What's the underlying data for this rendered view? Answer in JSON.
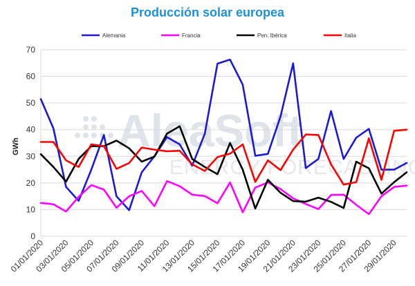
{
  "chart_data": {
    "type": "line",
    "title": "Producción solar europea",
    "xlabel": "",
    "ylabel": "GWh",
    "ylim": [
      0,
      70
    ],
    "yticks": [
      0,
      10,
      20,
      30,
      40,
      50,
      60,
      70
    ],
    "grid": true,
    "legend_position": "top",
    "watermark": [
      "AleaSoft",
      "ENERGY FORECASTING"
    ],
    "x": [
      "01/01/2020",
      "02/01/2020",
      "03/01/2020",
      "04/01/2020",
      "05/01/2020",
      "06/01/2020",
      "07/01/2020",
      "08/01/2020",
      "09/01/2020",
      "10/01/2020",
      "11/01/2020",
      "12/01/2020",
      "13/01/2020",
      "14/01/2020",
      "15/01/2020",
      "16/01/2020",
      "17/01/2020",
      "18/01/2020",
      "19/01/2020",
      "20/01/2020",
      "21/01/2020",
      "22/01/2020",
      "23/01/2020",
      "24/01/2020",
      "25/01/2020",
      "26/01/2020",
      "27/01/2020",
      "28/01/2020",
      "29/01/2020",
      "30/01/2020"
    ],
    "xtick_labels": [
      "01/01/2020",
      "03/01/2020",
      "05/01/2020",
      "07/01/2020",
      "09/01/2020",
      "11/01/2020",
      "13/01/2020",
      "15/01/2020",
      "17/01/2020",
      "19/01/2020",
      "21/01/2020",
      "23/01/2020",
      "25/01/2020",
      "27/01/2020",
      "29/01/2020"
    ],
    "series": [
      {
        "name": "Alemania",
        "color": "#1a1ad6",
        "values": [
          51.5,
          40.5,
          18.5,
          13.3,
          25.0,
          38.0,
          15.0,
          9.8,
          24.0,
          30.0,
          37.2,
          34.5,
          26.5,
          38.5,
          64.8,
          66.3,
          56.9,
          30.2,
          30.9,
          45.0,
          64.9,
          25.6,
          29.0,
          47.0,
          29.0,
          37.0,
          40.3,
          25.0,
          25.0,
          27.5
        ]
      },
      {
        "name": "Francia",
        "color": "#ff00ff",
        "values": [
          12.5,
          12.0,
          9.3,
          14.8,
          19.2,
          17.5,
          10.7,
          15.0,
          17.0,
          11.3,
          20.7,
          18.8,
          15.6,
          15.1,
          12.4,
          20.2,
          9.0,
          18.3,
          20.2,
          17.7,
          14.2,
          12.1,
          10.2,
          15.5,
          15.6,
          11.8,
          8.3,
          15.0,
          18.5,
          19.0
        ]
      },
      {
        "name": "Pen. Ibérica",
        "color": "#000000",
        "values": [
          30.8,
          26.0,
          20.5,
          29.0,
          33.8,
          33.8,
          35.9,
          33.0,
          28.0,
          29.9,
          38.5,
          41.3,
          29.0,
          26.0,
          23.3,
          35.0,
          25.0,
          10.4,
          21.2,
          16.3,
          13.2,
          13.0,
          14.5,
          12.9,
          10.6,
          28.0,
          25.5,
          16.0,
          20.3,
          24.0
        ]
      },
      {
        "name": "Italia",
        "color": "#ff0000",
        "values": [
          35.4,
          35.4,
          28.5,
          26.0,
          34.5,
          33.8,
          25.3,
          27.5,
          33.3,
          32.5,
          31.9,
          32.1,
          27.0,
          24.5,
          29.7,
          31.0,
          34.5,
          20.4,
          28.5,
          24.8,
          32.5,
          38.2,
          38.0,
          27.0,
          19.4,
          20.3,
          36.8,
          21.2,
          39.6,
          40.0
        ]
      }
    ]
  }
}
